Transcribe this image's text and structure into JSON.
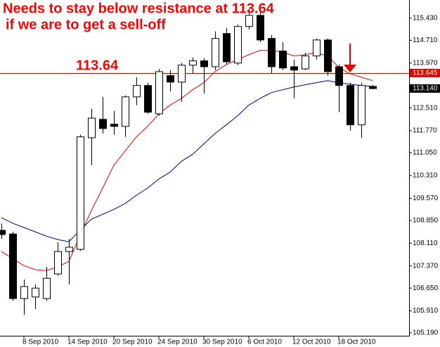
{
  "chart_data": {
    "type": "candlestick",
    "title": "Needs to stay below resistance at 113.64",
    "subtitle": "if we are to get a sell-off",
    "annotations": [
      {
        "text": "113.64"
      }
    ],
    "categories": [
      null,
      null,
      "8 Sep 2010",
      null,
      null,
      null,
      "14 Sep 2010",
      null,
      null,
      null,
      "20 Sep 2010",
      null,
      null,
      null,
      "24 Sep 2010",
      null,
      null,
      null,
      "30 Sep 2010",
      null,
      null,
      null,
      "6 Oct 2010",
      null,
      null,
      null,
      "12 Oct 2010",
      null,
      null,
      null,
      "18 Oct 2010",
      null,
      null,
      null
    ],
    "open": [
      108.53,
      108.41,
      106.31,
      106.36,
      106.31,
      107.11,
      107.84,
      107.91,
      111.54,
      112.14,
      111.98,
      111.91,
      112.87,
      113.24,
      112.32,
      113.56,
      113.35,
      113.9,
      114.04,
      113.85,
      114.93,
      113.97,
      115.16,
      115.52,
      114.77,
      114.36,
      113.85,
      113.78,
      114.2,
      114.72,
      113.85,
      113.24,
      111.96,
      113.21
    ],
    "high": [
      108.75,
      108.48,
      106.93,
      106.77,
      107.34,
      108.14,
      108.25,
      111.64,
      112.48,
      112.87,
      112.41,
      112.92,
      113.51,
      113.33,
      113.78,
      113.74,
      113.97,
      114.15,
      114.13,
      115.0,
      115.11,
      115.22,
      115.75,
      115.61,
      114.88,
      114.65,
      114.08,
      114.31,
      114.77,
      114.77,
      113.92,
      113.33,
      113.33,
      113.26
    ],
    "low": [
      108.25,
      106.24,
      105.78,
      105.97,
      106.24,
      107.06,
      106.77,
      107.86,
      110.65,
      111.68,
      111.64,
      111.57,
      112.6,
      112.32,
      112.25,
      113.05,
      112.71,
      113.63,
      112.98,
      113.74,
      113.92,
      113.9,
      115.06,
      114.65,
      113.63,
      113.74,
      112.82,
      113.74,
      114.08,
      113.56,
      112.37,
      111.77,
      111.54,
      113.12
    ],
    "close": [
      108.39,
      106.31,
      106.7,
      106.65,
      106.97,
      107.84,
      107.98,
      111.57,
      112.18,
      111.84,
      111.91,
      112.87,
      113.24,
      112.37,
      113.69,
      113.35,
      113.9,
      114.04,
      113.85,
      114.77,
      114.01,
      115.16,
      115.52,
      114.72,
      113.85,
      113.81,
      113.74,
      114.2,
      114.72,
      113.69,
      113.24,
      111.96,
      113.24,
      113.14
    ],
    "up_color": "#ffffff",
    "down_color": "#000000",
    "series": [
      {
        "color": "#e00000",
        "values": [
          107.84,
          107.61,
          107.38,
          107.25,
          107.22,
          107.34,
          107.52,
          108.37,
          109.17,
          109.9,
          110.65,
          111.11,
          111.57,
          111.91,
          112.32,
          112.6,
          112.82,
          113.1,
          113.33,
          113.69,
          113.92,
          114.08,
          114.24,
          114.38,
          114.38,
          114.33,
          114.2,
          114.24,
          114.31,
          114.2,
          113.83,
          113.62,
          113.51,
          113.4
        ]
      },
      {
        "color": "#000080",
        "values": [
          108.94,
          108.76,
          108.62,
          108.48,
          108.34,
          108.23,
          108.16,
          108.53,
          108.89,
          109.05,
          109.21,
          109.4,
          109.67,
          109.9,
          110.2,
          110.42,
          110.77,
          111.0,
          111.34,
          111.68,
          111.96,
          112.25,
          112.6,
          112.82,
          113.01,
          113.1,
          113.19,
          113.26,
          113.33,
          113.4,
          113.33,
          113.28,
          113.24,
          113.21
        ]
      }
    ],
    "hline": {
      "value": 113.645,
      "label": "113.645",
      "color": "#e00000"
    },
    "last_price": {
      "value": 113.14,
      "label": "113.140",
      "color": "#000000"
    },
    "ylim": [
      105.1,
      116.02
    ],
    "yticks": [
      {
        "value": 115.43,
        "label": "115.430"
      },
      {
        "value": 114.71,
        "label": "114.710"
      },
      {
        "value": 113.97,
        "label": "113.970"
      },
      {
        "value": 112.51,
        "label": "112.510"
      },
      {
        "value": 111.77,
        "label": "111.770"
      },
      {
        "value": 111.05,
        "label": "111.050"
      },
      {
        "value": 110.31,
        "label": "110.310"
      },
      {
        "value": 109.57,
        "label": "109.570"
      },
      {
        "value": 108.85,
        "label": "108.850"
      },
      {
        "value": 108.11,
        "label": "108.110"
      },
      {
        "value": 107.37,
        "label": "107.370"
      },
      {
        "value": 106.65,
        "label": "106.650"
      },
      {
        "value": 105.91,
        "label": "105.910"
      },
      {
        "value": 105.19,
        "label": "105.190"
      }
    ]
  }
}
